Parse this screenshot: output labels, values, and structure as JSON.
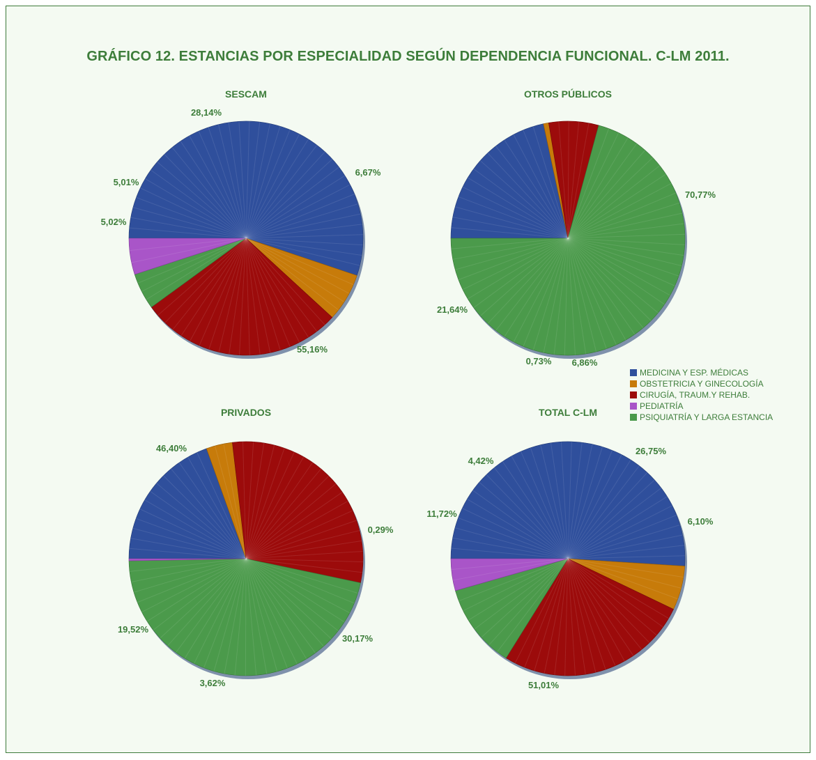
{
  "title": "GRÁFICO 12. ESTANCIAS POR ESPECIALIDAD SEGÚN DEPENDENCIA FUNCIONAL. C-LM 2011.",
  "legend": [
    {
      "name": "MEDICINA Y ESP. MÉDICAS",
      "color": "#2f4f9c"
    },
    {
      "name": "OBSTETRICIA Y GINECOLOGÍA",
      "color": "#c77b0a"
    },
    {
      "name": "CIRUGÍA, TRAUM.Y REHAB.",
      "color": "#9c0b0b"
    },
    {
      "name": "PEDIATRÍA",
      "color": "#a955c8"
    },
    {
      "name": "PSIQUIATRÍA Y LARGA ESTANCIA",
      "color": "#4b9a4b"
    }
  ],
  "chart_data": [
    {
      "type": "pie",
      "title": "SESCAM",
      "categories": [
        "MEDICINA Y ESP. MÉDICAS",
        "OBSTETRICIA Y GINECOLOGÍA",
        "CIRUGÍA, TRAUM.Y REHAB.",
        "PEDIATRÍA",
        "PSIQUIATRÍA Y LARGA ESTANCIA"
      ],
      "values": [
        55.16,
        6.67,
        28.14,
        5.01,
        5.02
      ],
      "labels": [
        "55,16%",
        "6,67%",
        "28,14%",
        "5,01%",
        "5,02%"
      ]
    },
    {
      "type": "pie",
      "title": "OTROS PÚBLICOS",
      "categories": [
        "MEDICINA Y ESP. MÉDICAS",
        "OBSTETRICIA Y GINECOLOGÍA",
        "CIRUGÍA, TRAUM.Y REHAB.",
        "PEDIATRÍA",
        "PSIQUIATRÍA Y LARGA ESTANCIA"
      ],
      "values": [
        21.64,
        0.73,
        6.86,
        0,
        70.77
      ],
      "labels": [
        "21,64%",
        "0,73%",
        "6,86%",
        "",
        "70,77%"
      ]
    },
    {
      "type": "pie",
      "title": "PRIVADOS",
      "categories": [
        "MEDICINA Y ESP. MÉDICAS",
        "OBSTETRICIA Y GINECOLOGÍA",
        "CIRUGÍA, TRAUM.Y REHAB.",
        "PEDIATRÍA",
        "PSIQUIATRÍA Y LARGA ESTANCIA"
      ],
      "values": [
        19.52,
        3.62,
        30.17,
        0.29,
        46.4
      ],
      "labels": [
        "19,52%",
        "3,62%",
        "30,17%",
        "0,29%",
        "46,40%"
      ]
    },
    {
      "type": "pie",
      "title": "TOTAL C-LM",
      "categories": [
        "MEDICINA Y ESP. MÉDICAS",
        "OBSTETRICIA Y GINECOLOGÍA",
        "CIRUGÍA, TRAUM.Y REHAB.",
        "PEDIATRÍA",
        "PSIQUIATRÍA Y LARGA ESTANCIA"
      ],
      "values": [
        51.01,
        6.1,
        26.75,
        4.42,
        11.72
      ],
      "labels": [
        "51,01%",
        "6,10%",
        "26,75%",
        "4,42%",
        "11,72%"
      ]
    }
  ]
}
